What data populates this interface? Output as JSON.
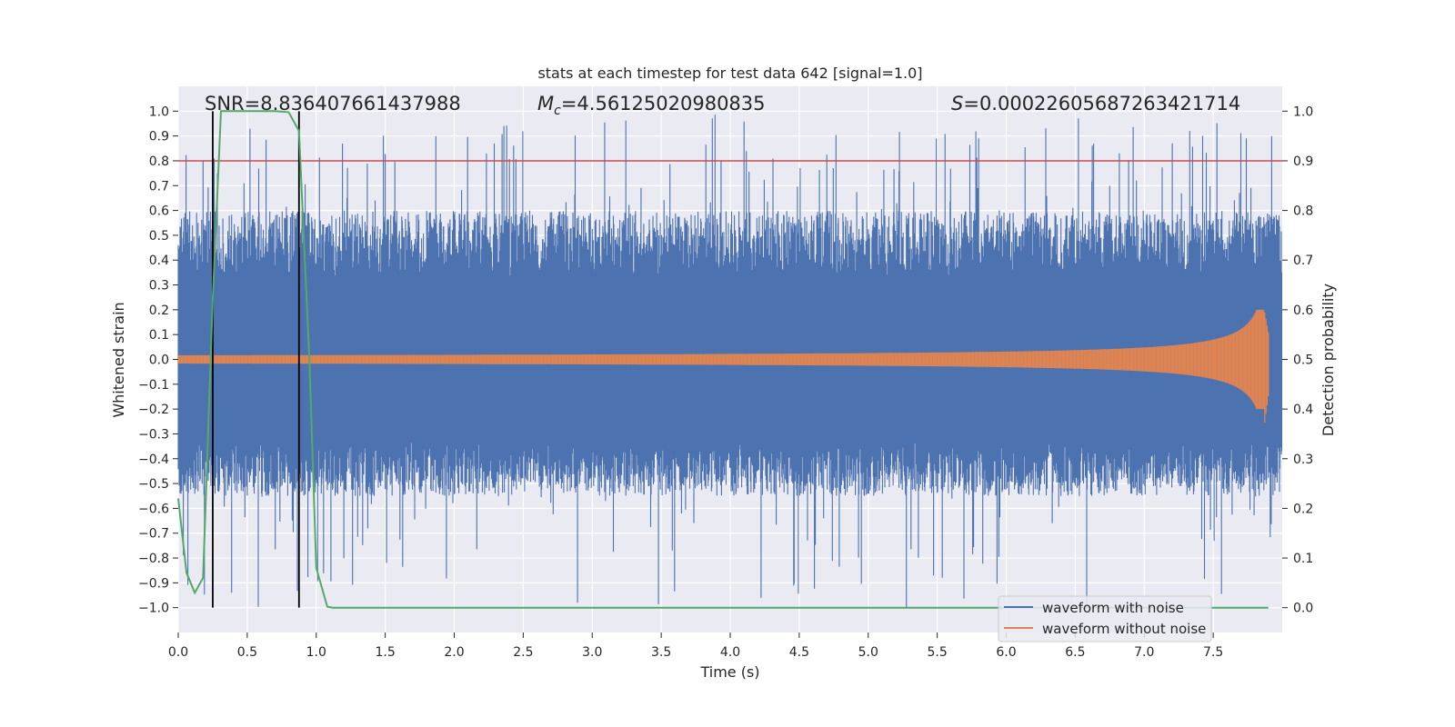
{
  "chart_data": {
    "type": "line",
    "title": "stats at each timestep for test data 642 [signal=1.0]",
    "xlabel": "Time (s)",
    "ylabel_left": "Whitened strain",
    "ylabel_right": "Detection probability",
    "xlim": [
      0.0,
      8.0
    ],
    "ylim_left": [
      -1.1,
      1.1
    ],
    "ylim_right": [
      -0.05,
      1.05
    ],
    "x_ticks": [
      "0.0",
      "0.5",
      "1.0",
      "1.5",
      "2.0",
      "2.5",
      "3.0",
      "3.5",
      "4.0",
      "4.5",
      "5.0",
      "5.5",
      "6.0",
      "6.5",
      "7.0",
      "7.5"
    ],
    "y_ticks_left": [
      "1.0",
      "0.9",
      "0.8",
      "0.7",
      "0.6",
      "0.5",
      "0.4",
      "0.3",
      "0.2",
      "0.1",
      "0.0",
      "−0.1",
      "−0.2",
      "−0.3",
      "−0.4",
      "−0.5",
      "−0.6",
      "−0.7",
      "−0.8",
      "−0.9",
      "−1.0"
    ],
    "y_ticks_right": [
      "1.0",
      "0.9",
      "0.8",
      "0.7",
      "0.6",
      "0.5",
      "0.4",
      "0.3",
      "0.2",
      "0.1",
      "0.0"
    ],
    "annotations": {
      "snr": "SNR=8.836407661437988",
      "mc_symbol": "M",
      "mc_subscript": "c",
      "mc_value": "=4.56125020980835",
      "s_symbol": "S",
      "s_value": "=0.00022605687263421714"
    },
    "threshold_right": 0.9,
    "vertical_lines_x": [
      0.25,
      0.875
    ],
    "legend": {
      "position": "lower-right",
      "entries": [
        {
          "label": "waveform with noise",
          "color": "#4c72b0"
        },
        {
          "label": "waveform without noise",
          "color": "#dd8452"
        }
      ]
    },
    "series": [
      {
        "name": "waveform with noise",
        "color": "#4c72b0",
        "kind": "noise",
        "duration": 8.0,
        "typical_range": [
          -0.55,
          0.6
        ],
        "peak_range": [
          -1.0,
          0.99
        ]
      },
      {
        "name": "waveform without noise",
        "color": "#dd8452",
        "kind": "chirp",
        "x_end": 7.9,
        "amp_start": 0.015,
        "amp_at_7_5": 0.08,
        "amp_peak_pos": 0.2,
        "amp_peak_neg": -0.27
      },
      {
        "name": "detection probability",
        "color": "#55a868",
        "axis": "right",
        "x": [
          0.0,
          0.06,
          0.12,
          0.18,
          0.25,
          0.31,
          0.4,
          0.5,
          0.6,
          0.7,
          0.8,
          0.875,
          0.95,
          1.0,
          1.08,
          1.12,
          2.0,
          4.0,
          6.0,
          7.0,
          7.9
        ],
        "y": [
          0.22,
          0.07,
          0.03,
          0.06,
          0.62,
          1.0,
          1.0,
          1.0,
          1.0,
          1.0,
          0.998,
          0.96,
          0.5,
          0.08,
          0.002,
          0.0,
          0.0,
          0.0,
          0.0,
          0.0,
          0.0
        ]
      }
    ],
    "colors": {
      "axes_bg": "#eaeaf2",
      "grid": "#ffffff",
      "threshold": "#c44e52",
      "vline": "#000000",
      "text": "#262626"
    }
  }
}
